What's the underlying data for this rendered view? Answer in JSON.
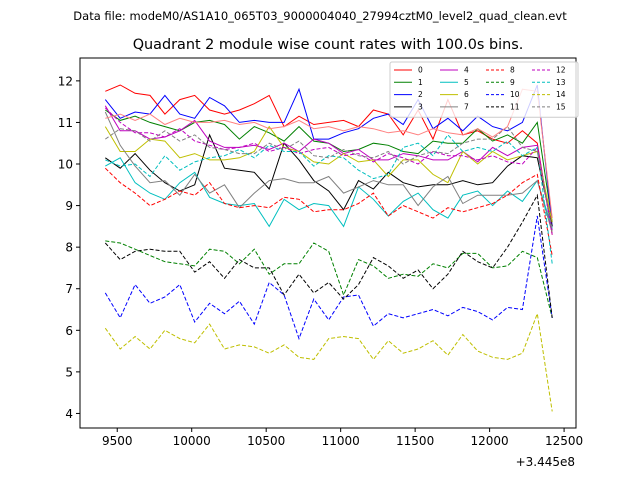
{
  "suptitle": "Data file: modeM0/AS1A10_065T03_9000004040_27994cztM0_level2_quad_clean.evt",
  "chart_data": {
    "type": "line",
    "title": "Quadrant 2 module wise count rates with 100.0s bins.",
    "xlabel": "",
    "ylabel": "",
    "x_offset_label": "+3.445e8",
    "xlim": [
      9250,
      12580
    ],
    "ylim": [
      3.65,
      12.55
    ],
    "xticks": [
      9500,
      10000,
      10500,
      11000,
      11500,
      12000,
      12500
    ],
    "yticks": [
      4,
      5,
      6,
      7,
      8,
      9,
      10,
      11,
      12
    ],
    "grid": false,
    "legend_placement": "upper-right",
    "legend_columns": 4,
    "x": [
      9420,
      9520,
      9620,
      9720,
      9820,
      9920,
      10020,
      10120,
      10220,
      10320,
      10420,
      10520,
      10620,
      10720,
      10820,
      10920,
      11020,
      11120,
      11220,
      11320,
      11420,
      11520,
      11620,
      11720,
      11820,
      11920,
      12020,
      12120,
      12220,
      12320,
      12420
    ],
    "series": [
      {
        "name": "0",
        "color": "#ff0000",
        "dash": "solid",
        "values": [
          11.75,
          11.9,
          11.7,
          11.65,
          11.2,
          11.55,
          11.65,
          11.3,
          11.2,
          11.3,
          11.45,
          11.65,
          10.9,
          11.15,
          10.95,
          11.0,
          11.05,
          10.9,
          11.3,
          11.2,
          10.7,
          11.3,
          10.6,
          11.55,
          10.7,
          10.8,
          10.6,
          10.5,
          10.8,
          10.5,
          8.3
        ]
      },
      {
        "name": "1",
        "color": "#008000",
        "dash": "solid",
        "values": [
          11.3,
          11.05,
          11.15,
          11.0,
          10.9,
          10.8,
          11.0,
          11.05,
          10.95,
          10.6,
          10.9,
          10.75,
          10.55,
          10.9,
          10.55,
          10.5,
          10.3,
          10.35,
          10.5,
          10.45,
          10.3,
          10.25,
          10.55,
          10.5,
          10.5,
          10.85,
          10.55,
          10.7,
          10.5,
          11.0,
          8.6
        ]
      },
      {
        "name": "2",
        "color": "#0000ff",
        "dash": "solid",
        "values": [
          11.55,
          11.1,
          11.25,
          11.2,
          11.65,
          11.2,
          11.1,
          11.6,
          11.4,
          11.0,
          11.05,
          11.0,
          11.0,
          11.8,
          10.6,
          10.6,
          10.75,
          10.85,
          11.1,
          11.2,
          10.95,
          11.55,
          10.85,
          11.1,
          10.8,
          11.15,
          10.9,
          10.8,
          11.0,
          11.9,
          8.5
        ]
      },
      {
        "name": "3",
        "color": "#000000",
        "dash": "solid",
        "values": [
          10.15,
          9.9,
          10.25,
          9.85,
          9.55,
          9.35,
          9.5,
          10.7,
          9.9,
          9.85,
          9.8,
          9.4,
          10.5,
          10.1,
          9.6,
          9.35,
          8.9,
          9.6,
          9.4,
          9.8,
          9.55,
          9.45,
          9.5,
          9.5,
          9.6,
          9.5,
          9.55,
          9.95,
          10.2,
          10.15,
          8.5
        ]
      },
      {
        "name": "4",
        "color": "#bf00bf",
        "dash": "solid",
        "values": [
          11.4,
          10.8,
          10.8,
          10.6,
          10.65,
          10.8,
          11.05,
          10.55,
          10.4,
          10.4,
          10.45,
          10.35,
          10.5,
          10.3,
          10.6,
          10.5,
          10.25,
          10.35,
          10.1,
          10.1,
          10.25,
          10.2,
          10.1,
          10.1,
          10.3,
          10.05,
          10.4,
          10.2,
          10.4,
          10.45,
          8.4
        ]
      },
      {
        "name": "5",
        "color": "#00bfbf",
        "dash": "solid",
        "values": [
          9.95,
          10.15,
          9.55,
          9.3,
          9.15,
          9.55,
          9.8,
          9.2,
          9.05,
          9.0,
          9.05,
          8.5,
          9.15,
          8.9,
          9.05,
          9.0,
          8.5,
          9.45,
          9.15,
          8.75,
          9.1,
          9.3,
          8.9,
          8.7,
          9.25,
          9.35,
          9.0,
          9.35,
          9.1,
          9.6,
          8.45
        ]
      },
      {
        "name": "6",
        "color": "#bfbf00",
        "dash": "solid",
        "values": [
          10.9,
          10.3,
          10.3,
          10.6,
          10.55,
          10.15,
          10.25,
          10.1,
          10.1,
          10.15,
          10.3,
          10.9,
          10.4,
          10.3,
          10.05,
          10.0,
          10.25,
          10.05,
          10.1,
          9.7,
          10.1,
          10.1,
          9.75,
          9.55,
          10.3,
          10.0,
          10.3,
          10.1,
          10.2,
          10.3,
          8.6
        ]
      },
      {
        "name": "7",
        "color": "#808080",
        "dash": "solid",
        "values": [
          11.25,
          10.45,
          9.95,
          9.55,
          9.6,
          9.25,
          9.75,
          9.3,
          9.5,
          8.95,
          9.3,
          9.6,
          9.65,
          9.55,
          9.55,
          9.7,
          9.3,
          9.45,
          9.6,
          9.5,
          9.5,
          9.0,
          9.45,
          9.7,
          9.05,
          9.25,
          9.25,
          9.25,
          9.3,
          9.6,
          8.35
        ]
      },
      {
        "name": "8",
        "color": "#ff0000",
        "dash": "dashed",
        "values": [
          9.9,
          9.55,
          9.3,
          9.0,
          9.15,
          9.35,
          9.25,
          9.55,
          9.05,
          8.95,
          9.0,
          8.95,
          9.2,
          9.15,
          8.85,
          8.9,
          8.9,
          9.05,
          9.3,
          8.75,
          9.0,
          8.85,
          8.7,
          8.95,
          8.85,
          8.95,
          9.05,
          9.25,
          9.55,
          9.75,
          7.8
        ]
      },
      {
        "name": "9",
        "color": "#008000",
        "dash": "dashed",
        "values": [
          8.15,
          8.1,
          7.95,
          7.8,
          7.65,
          7.6,
          7.55,
          7.95,
          7.9,
          7.6,
          7.95,
          7.35,
          7.6,
          7.6,
          8.1,
          7.9,
          6.85,
          7.7,
          7.55,
          7.25,
          7.35,
          7.3,
          7.6,
          7.5,
          7.85,
          7.85,
          7.5,
          7.55,
          7.9,
          7.75,
          6.3
        ]
      },
      {
        "name": "10",
        "color": "#0000ff",
        "dash": "dashed",
        "values": [
          6.9,
          6.3,
          7.1,
          6.65,
          6.8,
          7.1,
          6.2,
          6.65,
          6.4,
          6.7,
          6.15,
          7.15,
          6.85,
          5.8,
          6.75,
          6.25,
          6.8,
          6.85,
          6.1,
          6.4,
          6.3,
          6.4,
          6.5,
          6.35,
          6.55,
          6.45,
          6.25,
          6.55,
          6.5,
          8.75,
          6.3
        ]
      },
      {
        "name": "11",
        "color": "#000000",
        "dash": "dashed",
        "values": [
          8.1,
          7.7,
          7.9,
          7.95,
          7.9,
          7.9,
          7.4,
          7.65,
          7.25,
          7.7,
          7.5,
          7.5,
          6.85,
          7.35,
          6.9,
          7.15,
          6.75,
          7.1,
          7.75,
          7.55,
          7.25,
          7.45,
          7.0,
          7.35,
          7.9,
          7.65,
          7.5,
          8.0,
          8.6,
          9.25,
          6.3
        ]
      },
      {
        "name": "12",
        "color": "#bf00bf",
        "dash": "dashed",
        "values": [
          11.35,
          11.0,
          10.75,
          10.75,
          10.65,
          10.85,
          10.55,
          10.45,
          10.35,
          10.4,
          10.5,
          10.3,
          10.4,
          10.25,
          10.35,
          10.4,
          10.2,
          10.25,
          10.05,
          10.25,
          10.15,
          10.0,
          10.3,
          10.2,
          10.2,
          10.1,
          10.2,
          10.05,
          10.0,
          10.4,
          8.3
        ]
      },
      {
        "name": "13",
        "color": "#00bfbf",
        "dash": "dashed",
        "values": [
          10.1,
          9.95,
          10.0,
          9.7,
          10.2,
          9.85,
          10.05,
          10.15,
          10.2,
          10.35,
          10.15,
          10.45,
          10.3,
          10.3,
          9.95,
          10.2,
          10.15,
          9.85,
          9.65,
          9.75,
          10.4,
          10.5,
          10.2,
          10.7,
          10.3,
          10.4,
          10.3,
          10.55,
          10.2,
          10.4,
          7.6
        ]
      },
      {
        "name": "14",
        "color": "#bfbf00",
        "dash": "dashed",
        "values": [
          6.05,
          5.55,
          5.85,
          5.55,
          6.0,
          5.8,
          5.7,
          6.15,
          5.55,
          5.65,
          5.6,
          5.45,
          5.65,
          5.35,
          5.3,
          5.8,
          5.85,
          5.8,
          5.3,
          5.75,
          5.45,
          5.55,
          5.75,
          5.4,
          5.9,
          5.5,
          5.35,
          5.3,
          5.45,
          6.4,
          4.05
        ]
      },
      {
        "name": "15",
        "color": "#808080",
        "dash": "dashed",
        "values": [
          10.6,
          10.85,
          10.8,
          10.55,
          10.8,
          10.55,
          10.7,
          10.4,
          10.35,
          10.25,
          10.25,
          10.5,
          10.35,
          10.55,
          10.2,
          10.15,
          10.35,
          10.2,
          10.15,
          10.3,
          10.0,
          10.2,
          10.3,
          10.25,
          10.5,
          10.6,
          10.6,
          10.9,
          10.4,
          10.3,
          8.4
        ]
      },
      {
        "name": "",
        "color": "#ff8080",
        "dash": "solid",
        "values": [
          11.1,
          11.2,
          11.05,
          11.2,
          10.95,
          11.1,
          11.0,
          11.0,
          11.05,
          10.95,
          11.0,
          10.85,
          10.9,
          11.05,
          10.85,
          10.9,
          10.8,
          10.9,
          10.85,
          10.75,
          10.8,
          10.7,
          10.85,
          10.75,
          10.7,
          10.85,
          10.65,
          10.9,
          11.8,
          11.75,
          8.7
        ]
      }
    ]
  }
}
